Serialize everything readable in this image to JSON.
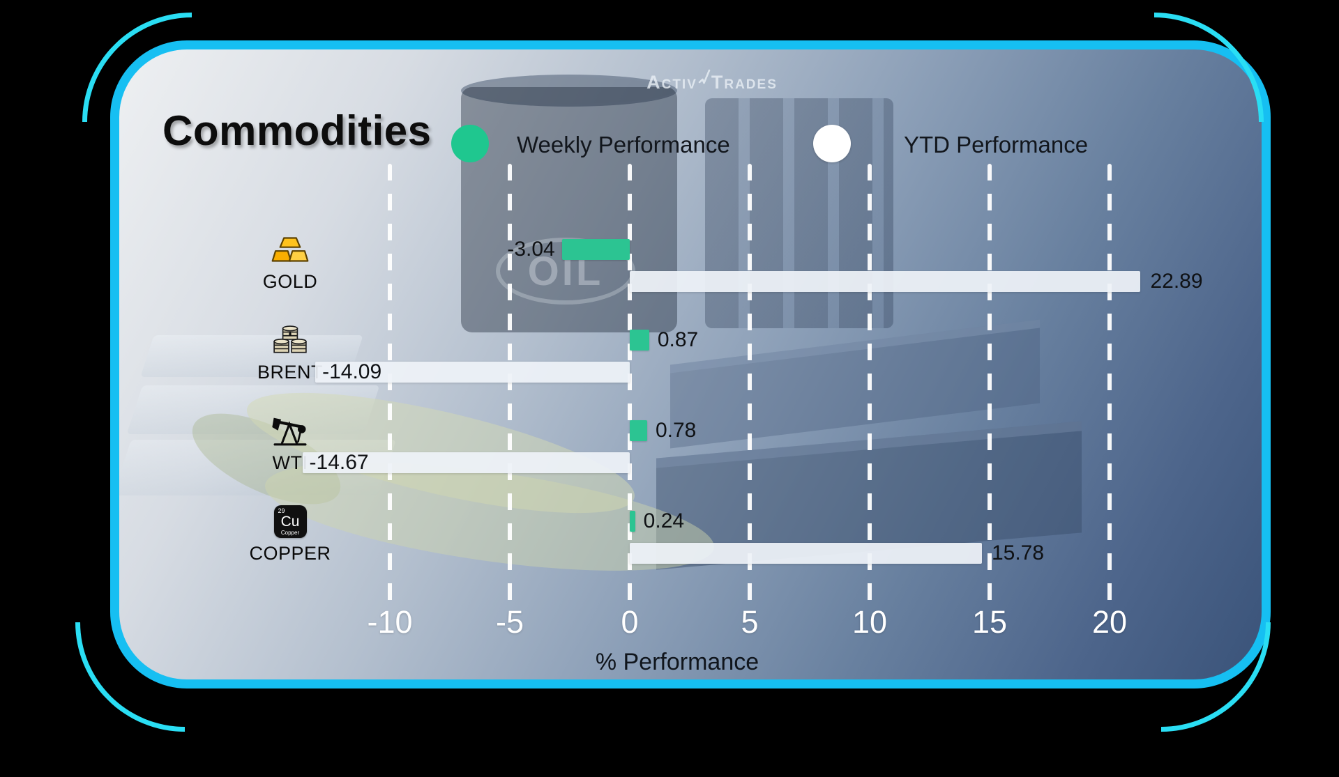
{
  "brand": {
    "name_left": "Activ",
    "name_right": "Trades"
  },
  "header": {
    "title": "Commodities",
    "legend": [
      {
        "label": "Weekly Performance",
        "color": "#2cc492"
      },
      {
        "label": "YTD Performance",
        "color": "#ffffff"
      }
    ]
  },
  "chart_data": {
    "type": "bar",
    "orientation": "horizontal",
    "title": "Commodities",
    "categories": [
      "GOLD",
      "BRENT",
      "WTI",
      "COPPER"
    ],
    "series": [
      {
        "name": "Weekly Performance",
        "color": "#2cc492",
        "values": [
          -3.04,
          0.87,
          0.78,
          0.24
        ]
      },
      {
        "name": "YTD Performance",
        "color": "#eef2f7",
        "values": [
          22.89,
          -14.09,
          -14.67,
          15.78
        ]
      }
    ],
    "x_ticks": [
      -10,
      -5,
      0,
      5,
      10,
      15,
      20
    ],
    "xlim": [
      -15,
      27
    ],
    "xlabel": "% Performance",
    "grid": "vertical-dashed-white",
    "legend_position": "top",
    "icons": [
      "gold-bars-icon",
      "oil-barrels-icon",
      "pumpjack-icon",
      "copper-element-icon"
    ]
  },
  "background": {
    "oil_label": "OIL"
  },
  "copper_badge": {
    "number": "29",
    "symbol": "Cu",
    "name": "Copper"
  },
  "colors": {
    "accent_border": "#16bff2",
    "weekly_bar": "#2cc492",
    "ytd_bar": "#eef2f7",
    "card_gradient_start": "#eef0f2",
    "card_gradient_end": "#3a5379"
  }
}
